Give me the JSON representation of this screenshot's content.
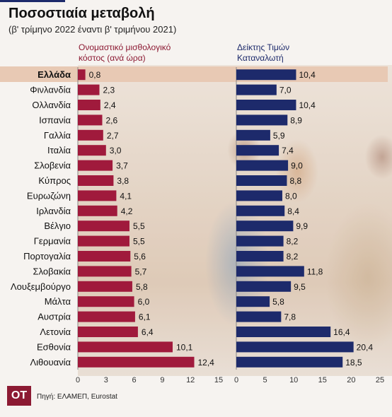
{
  "title": "Ποσοστιαία μεταβολή",
  "subtitle": "(β' τρίμηνο 2022 έναντι β' τριμήνου 2021)",
  "logo": "OT",
  "source": "Πηγή: ΕΛΑΜΕΠ, Eurostat",
  "colors": {
    "left": "#a01a3c",
    "right": "#1d2a6b",
    "highlight": "#e8c9b4"
  },
  "chart_data": {
    "type": "bar",
    "orientation": "horizontal",
    "highlight": "Ελλάδα",
    "categories": [
      "Ελλάδα",
      "Φινλανδία",
      "Ολλανδία",
      "Ισπανία",
      "Γαλλία",
      "Ιταλία",
      "Σλοβενία",
      "Κύπρος",
      "Ευρωζώνη",
      "Ιρλανδία",
      "Βέλγιο",
      "Γερμανία",
      "Πορτογαλία",
      "Σλοβακία",
      "Λουξεμβούργο",
      "Μάλτα",
      "Αυστρία",
      "Λετονία",
      "Εσθονία",
      "Λιθουανία"
    ],
    "series": [
      {
        "name": "Ονομαστικό μισθολογικό κόστος (ανά ώρα)",
        "values": [
          0.8,
          2.3,
          2.4,
          2.6,
          2.7,
          3.0,
          3.7,
          3.8,
          4.1,
          4.2,
          5.5,
          5.5,
          5.6,
          5.7,
          5.8,
          6.0,
          6.1,
          6.4,
          10.1,
          12.4
        ],
        "labels": [
          "0,8",
          "2,3",
          "2,4",
          "2,6",
          "2,7",
          "3,0",
          "3,7",
          "3,8",
          "4,1",
          "4,2",
          "5,5",
          "5,5",
          "5,6",
          "5,7",
          "5,8",
          "6,0",
          "6,1",
          "6,4",
          "10,1",
          "12,4"
        ],
        "xlim": [
          0,
          15
        ],
        "ticks": [
          "0",
          "3",
          "6",
          "9",
          "12",
          "15"
        ]
      },
      {
        "name": "Δείκτης Τιμών Καταναλωτή",
        "values": [
          10.4,
          7.0,
          10.4,
          8.9,
          5.9,
          7.4,
          9.0,
          8.8,
          8.0,
          8.4,
          9.9,
          8.2,
          8.2,
          11.8,
          9.5,
          5.8,
          7.8,
          16.4,
          20.4,
          18.5
        ],
        "labels": [
          "10,4",
          "7,0",
          "10,4",
          "8,9",
          "5,9",
          "7,4",
          "9,0",
          "8,8",
          "8,0",
          "8,4",
          "9,9",
          "8,2",
          "8,2",
          "11,8",
          "9,5",
          "5,8",
          "7,8",
          "16,4",
          "20,4",
          "18,5"
        ],
        "xlim": [
          0,
          25
        ],
        "ticks": [
          "0",
          "5",
          "10",
          "15",
          "20",
          "25"
        ]
      }
    ],
    "headers": [
      "Ονομαστικό μισθολογικό\nκόστος (ανά ώρα)",
      "Δείκτης Τιμών\nΚαταναλωτή"
    ]
  }
}
